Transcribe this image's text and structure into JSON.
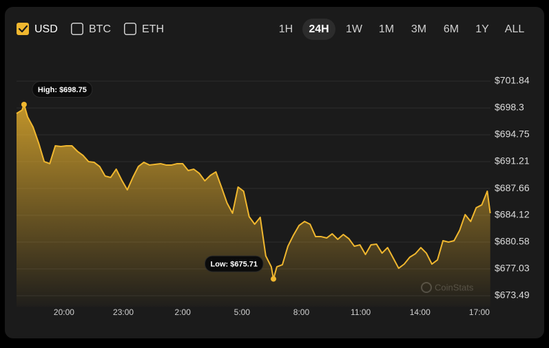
{
  "controls": {
    "currencies": [
      {
        "label": "USD",
        "selected": true
      },
      {
        "label": "BTC",
        "selected": false
      },
      {
        "label": "ETH",
        "selected": false
      }
    ],
    "ranges": [
      {
        "label": "1H",
        "selected": false
      },
      {
        "label": "24H",
        "selected": true
      },
      {
        "label": "1W",
        "selected": false
      },
      {
        "label": "1M",
        "selected": false
      },
      {
        "label": "3M",
        "selected": false
      },
      {
        "label": "6M",
        "selected": false
      },
      {
        "label": "1Y",
        "selected": false
      },
      {
        "label": "ALL",
        "selected": false
      }
    ],
    "watermark": "CoinStats"
  },
  "chart_data": {
    "type": "area",
    "color": "#f0b72f",
    "grid": true,
    "x": [
      17.6,
      17.88,
      17.98,
      18.16,
      18.44,
      18.72,
      19.0,
      19.28,
      19.56,
      19.84,
      20.12,
      20.4,
      20.68,
      20.96,
      21.24,
      21.52,
      21.8,
      22.08,
      22.36,
      22.64,
      22.92,
      23.2,
      23.48,
      23.76,
      24.04,
      24.32,
      24.6,
      24.88,
      25.16,
      25.44,
      25.72,
      26.0,
      26.28,
      26.56,
      26.84,
      27.12,
      27.4,
      27.68,
      27.96,
      28.24,
      28.52,
      28.8,
      29.08,
      29.36,
      29.64,
      29.92,
      30.2,
      30.48,
      30.59,
      30.76,
      31.04,
      31.32,
      31.6,
      31.88,
      32.16,
      32.44,
      32.72,
      33.0,
      33.28,
      33.56,
      33.84,
      34.12,
      34.4,
      34.68,
      34.96,
      35.24,
      35.52,
      35.8,
      36.08,
      36.36,
      36.64,
      36.92,
      37.2,
      37.48,
      37.76,
      38.04,
      38.32,
      38.6,
      38.88,
      39.16,
      39.44,
      39.72,
      40.0,
      40.28,
      40.56,
      40.84,
      41.12,
      41.4,
      41.55
    ],
    "values": [
      697.57,
      698.02,
      698.75,
      697.12,
      695.75,
      693.66,
      691.21,
      690.94,
      693.3,
      693.21,
      693.3,
      693.3,
      692.57,
      692.03,
      691.21,
      691.12,
      690.57,
      689.3,
      689.12,
      690.21,
      688.76,
      687.48,
      689.12,
      690.57,
      691.12,
      690.76,
      690.85,
      690.94,
      690.76,
      690.76,
      690.94,
      690.94,
      690.03,
      690.21,
      689.66,
      688.67,
      689.39,
      689.85,
      687.85,
      685.76,
      684.39,
      687.85,
      687.3,
      683.94,
      682.94,
      683.85,
      678.76,
      677.31,
      675.71,
      677.31,
      677.58,
      680.03,
      681.49,
      682.76,
      683.3,
      682.94,
      681.3,
      681.3,
      681.12,
      681.67,
      680.94,
      681.58,
      681.03,
      680.03,
      680.21,
      678.94,
      680.21,
      680.3,
      679.12,
      679.85,
      678.49,
      677.12,
      677.67,
      678.58,
      679.03,
      679.85,
      679.12,
      677.67,
      678.22,
      680.76,
      680.58,
      680.76,
      682.12,
      684.21,
      683.3,
      685.12,
      685.49,
      687.3,
      684.39
    ],
    "xlim": [
      17.6,
      41.56
    ],
    "xticks": [
      {
        "value": 20,
        "label": "20:00"
      },
      {
        "value": 23,
        "label": "23:00"
      },
      {
        "value": 26,
        "label": "2:00"
      },
      {
        "value": 29,
        "label": "5:00"
      },
      {
        "value": 32,
        "label": "8:00"
      },
      {
        "value": 35,
        "label": "11:00"
      },
      {
        "value": 38,
        "label": "14:00"
      },
      {
        "value": 41,
        "label": "17:00"
      }
    ],
    "ylim": [
      673.49,
      701.84
    ],
    "yticks": [
      {
        "value": 673.49,
        "label": "$673.49"
      },
      {
        "value": 677.03,
        "label": "$677.03"
      },
      {
        "value": 680.58,
        "label": "$680.58"
      },
      {
        "value": 684.12,
        "label": "$684.12"
      },
      {
        "value": 687.66,
        "label": "$687.66"
      },
      {
        "value": 691.21,
        "label": "$691.21"
      },
      {
        "value": 694.75,
        "label": "$694.75"
      },
      {
        "value": 698.3,
        "label": "$698.3"
      },
      {
        "value": 701.84,
        "label": "$701.84"
      }
    ],
    "annotations": [
      {
        "kind": "high",
        "x": 17.98,
        "value": 698.75,
        "label": "High: $698.75"
      },
      {
        "kind": "low",
        "x": 30.59,
        "value": 675.71,
        "label": "Low: $675.71"
      }
    ]
  }
}
